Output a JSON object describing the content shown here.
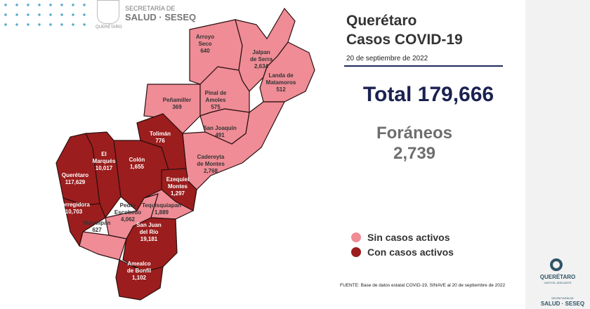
{
  "header": {
    "secretaria": "SECRETARÍA DE",
    "salud": "SALUD · SESEQ",
    "seal_caption": "QUERÉTARO"
  },
  "title_line1": "Querétaro",
  "title_line2": "Casos COVID-19",
  "date": "20 de septiembre de 2022",
  "total": "Total 179,666",
  "foraneos_label": "Foráneos",
  "foraneos_value": "2,739",
  "legend": [
    {
      "label": "Sin casos activos",
      "color": "#ef8c96"
    },
    {
      "label": "Con casos activos",
      "color": "#9c1d1d"
    }
  ],
  "source": "FUENTE: Base de datos estatal COVID-19, SINAVE al 20 de septiembre de 2022",
  "side": {
    "brand": "QUERÉTARO",
    "brand_sub": "JUNTOS, ADELANTE",
    "secretaria": "SECRETARÍA DE",
    "salud": "SALUD · SESEQ"
  },
  "municipalities": [
    {
      "name": [
        "Arroyo",
        "Seco"
      ],
      "cases": "640",
      "active": false
    },
    {
      "name": [
        "Jalpan",
        "de Serra"
      ],
      "cases": "2,634",
      "active": false
    },
    {
      "name": [
        "Landa de",
        "Matamoros"
      ],
      "cases": "512",
      "active": false
    },
    {
      "name": [
        "Peñamiller"
      ],
      "cases": "369",
      "active": false
    },
    {
      "name": [
        "Pinal de",
        "Amoles"
      ],
      "cases": "575",
      "active": false
    },
    {
      "name": [
        "San Joaquín"
      ],
      "cases": "491",
      "active": false
    },
    {
      "name": [
        "Cadereyta",
        "de Montes"
      ],
      "cases": "2,768",
      "active": false
    },
    {
      "name": [
        "Pedro",
        "Escobedo"
      ],
      "cases": "4,062",
      "active": false
    },
    {
      "name": [
        "Tequisquiapan"
      ],
      "cases": "1,889",
      "active": false
    },
    {
      "name": [
        "Huimilpan"
      ],
      "cases": "627",
      "active": false
    },
    {
      "name": [
        "Tolimán"
      ],
      "cases": "776",
      "active": true
    },
    {
      "name": [
        "Querétaro"
      ],
      "cases": "117,629",
      "active": true
    },
    {
      "name": [
        "El",
        "Marqués"
      ],
      "cases": "10,017",
      "active": true
    },
    {
      "name": [
        "Colón"
      ],
      "cases": "1,655",
      "active": true
    },
    {
      "name": [
        "Ezequiel",
        "Montes"
      ],
      "cases": "1,297",
      "active": true
    },
    {
      "name": [
        "Corregidora"
      ],
      "cases": "10,703",
      "active": true
    },
    {
      "name": [
        "San Juan",
        "del Río"
      ],
      "cases": "19,181",
      "active": true
    },
    {
      "name": [
        "Amealco",
        "de Bonfil"
      ],
      "cases": "1,102",
      "active": true
    }
  ]
}
